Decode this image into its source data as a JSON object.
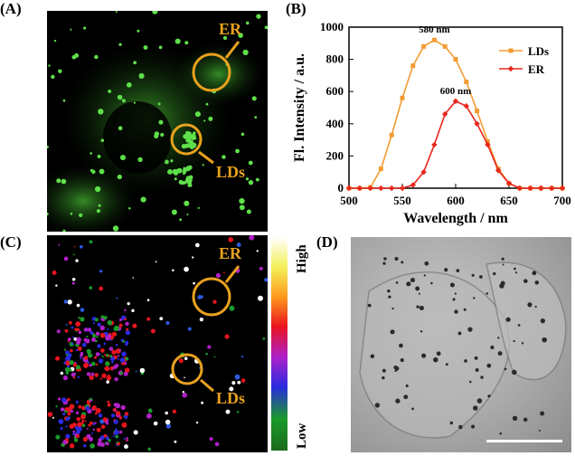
{
  "panels": {
    "a": {
      "label": "(A)",
      "annot_er": "ER",
      "annot_lds": "LDs"
    },
    "b": {
      "label": "(B)"
    },
    "c": {
      "label": "(C)",
      "annot_er": "ER",
      "annot_lds": "LDs",
      "colorbar_high": "High",
      "colorbar_low": "Low"
    },
    "d": {
      "label": "(D)"
    }
  },
  "colors": {
    "lds": "#f39c33",
    "er": "#e8281e",
    "annotation": "#e8a21e"
  },
  "chart_data": {
    "type": "line",
    "xlabel": "Wavelength / nm",
    "ylabel": "Fl. Intensity / a.u.",
    "xlim": [
      500,
      700
    ],
    "ylim": [
      0,
      1000
    ],
    "xticks": [
      500,
      550,
      600,
      650,
      700
    ],
    "yticks": [
      0,
      200,
      400,
      600,
      800,
      1000
    ],
    "legend_position": "top-right",
    "annotations": [
      {
        "text": "580 nm",
        "series": "LDs",
        "x": 580
      },
      {
        "text": "600 nm",
        "series": "ER",
        "x": 600
      }
    ],
    "series": [
      {
        "name": "LDs",
        "color": "#f39c33",
        "x": [
          500,
          510,
          520,
          530,
          540,
          550,
          560,
          570,
          580,
          590,
          600,
          610,
          620,
          630,
          640,
          650,
          660,
          670,
          680,
          690,
          700
        ],
        "y": [
          0,
          0,
          5,
          120,
          330,
          560,
          760,
          880,
          920,
          880,
          800,
          660,
          480,
          290,
          120,
          30,
          0,
          0,
          0,
          0,
          0
        ]
      },
      {
        "name": "ER",
        "color": "#e8281e",
        "x": [
          500,
          510,
          520,
          530,
          540,
          550,
          560,
          570,
          580,
          590,
          600,
          610,
          620,
          630,
          640,
          650,
          660,
          670,
          680,
          690,
          700
        ],
        "y": [
          0,
          0,
          0,
          0,
          0,
          0,
          20,
          100,
          270,
          460,
          540,
          510,
          400,
          270,
          110,
          30,
          0,
          0,
          0,
          0,
          0
        ]
      }
    ]
  }
}
